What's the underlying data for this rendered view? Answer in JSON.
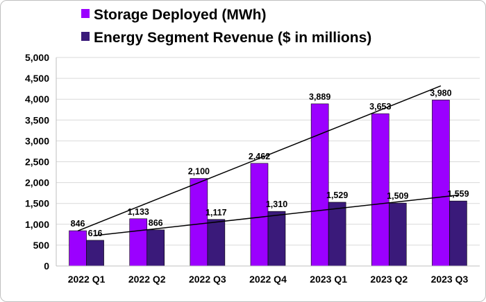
{
  "chart_data": {
    "type": "bar",
    "categories": [
      "2022 Q1",
      "2022 Q2",
      "2022 Q3",
      "2022 Q4",
      "2023 Q1",
      "2023 Q2",
      "2023 Q3"
    ],
    "series": [
      {
        "name": "Storage Deployed (MWh)",
        "color": "#9b00ff",
        "values": [
          846,
          1133,
          2100,
          2462,
          3889,
          3653,
          3980
        ],
        "labels": [
          "846",
          "1,133",
          "2,100",
          "2,462",
          "3,889",
          "3,653",
          "3,980"
        ]
      },
      {
        "name": "Energy Segment Revenue ($ in millions)",
        "color": "#3a1a7a",
        "values": [
          616,
          866,
          1117,
          1310,
          1529,
          1509,
          1559
        ],
        "labels": [
          "616",
          "866",
          "1,117",
          "1,310",
          "1,529",
          "1,509",
          "1,559"
        ]
      }
    ],
    "trendlines": true,
    "ylim": [
      0,
      5000
    ],
    "y_ticks": [
      0,
      500,
      1000,
      1500,
      2000,
      2500,
      3000,
      3500,
      4000,
      4500,
      5000
    ],
    "y_tick_labels": [
      "0",
      "500",
      "1,000",
      "1,500",
      "2,000",
      "2,500",
      "3,000",
      "3,500",
      "4,000",
      "4,500",
      "5,000"
    ],
    "grid": true,
    "legend_position": "top-center"
  }
}
